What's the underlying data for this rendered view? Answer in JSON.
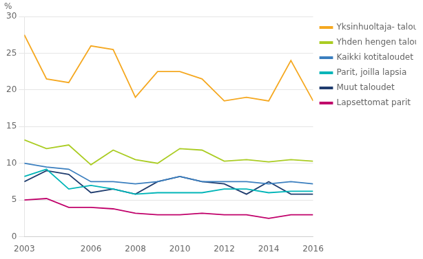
{
  "chart_data": {
    "type": "line",
    "ylabel": "%",
    "x": [
      2003,
      2004,
      2005,
      2006,
      2007,
      2008,
      2009,
      2010,
      2011,
      2012,
      2013,
      2014,
      2015,
      2016
    ],
    "series": [
      {
        "name": "Yksinhuoltaja-\ntaloudet",
        "color": "#F5A820",
        "values": [
          27.5,
          21.5,
          21.0,
          26.0,
          25.5,
          19.0,
          22.5,
          22.5,
          21.5,
          18.5,
          19.0,
          18.5,
          24.0,
          18.5
        ]
      },
      {
        "name": "Yhden hengen\ntaloudet",
        "color": "#AACC22",
        "values": [
          13.2,
          12.0,
          12.5,
          9.8,
          11.8,
          10.5,
          10.0,
          12.0,
          11.8,
          10.3,
          10.5,
          10.2,
          10.5,
          10.3
        ]
      },
      {
        "name": "Kaikki kotitaloudet",
        "color": "#3B7FBF",
        "values": [
          10.0,
          9.5,
          9.2,
          7.5,
          7.5,
          7.2,
          7.5,
          8.2,
          7.5,
          7.5,
          7.5,
          7.2,
          7.5,
          7.2
        ]
      },
      {
        "name": "Parit, joilla lapsia",
        "color": "#00B5B8",
        "values": [
          8.2,
          9.2,
          6.5,
          7.0,
          6.5,
          5.8,
          6.0,
          6.0,
          6.0,
          6.5,
          6.5,
          6.0,
          6.2,
          6.2
        ]
      },
      {
        "name": "Muut taloudet",
        "color": "#1F3C6E",
        "values": [
          7.5,
          9.0,
          8.5,
          6.0,
          6.5,
          5.8,
          7.5,
          8.2,
          7.5,
          7.2,
          5.8,
          7.5,
          5.8,
          5.8
        ]
      },
      {
        "name": "Lapsettomat parit",
        "color": "#C0006A",
        "values": [
          5.0,
          5.2,
          4.0,
          4.0,
          3.8,
          3.2,
          3.0,
          3.0,
          3.2,
          3.0,
          3.0,
          2.5,
          3.0,
          3.0
        ]
      }
    ],
    "xlim": [
      2003,
      2016
    ],
    "xticks": [
      2003,
      2006,
      2008,
      2010,
      2012,
      2014,
      2016
    ],
    "ylim": [
      0,
      30
    ],
    "yticks": [
      0,
      5,
      10,
      15,
      20,
      25,
      30
    ],
    "grid": true,
    "legend": "right"
  }
}
